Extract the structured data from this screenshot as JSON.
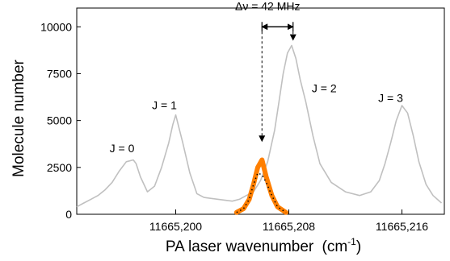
{
  "chart_data": {
    "type": "line",
    "title": "",
    "xlabel": "PA laser wavenumber",
    "xlabel_unit_base": "(cm",
    "xlabel_unit_sup": "-1",
    "xlabel_unit_close": ")",
    "ylabel": "Molecule number",
    "xlim": [
      11665.193,
      11665.219
    ],
    "ylim": [
      0,
      11000
    ],
    "x_ticks": [
      11665.2,
      11665.208,
      11665.216
    ],
    "x_tick_labels": [
      "11665,200",
      "11665,208",
      "11665,216"
    ],
    "y_ticks": [
      0,
      2500,
      5000,
      7500,
      10000
    ],
    "y_tick_labels": [
      "0",
      "2500",
      "5000",
      "7500",
      "10000"
    ],
    "grid": false,
    "legend": "none",
    "series": [
      {
        "color": "#c0c0c0",
        "x": [
          11665.193,
          11665.1935,
          11665.194,
          11665.1945,
          11665.195,
          11665.1955,
          11665.196,
          11665.1965,
          11665.197,
          11665.1972,
          11665.1975,
          11665.198,
          11665.1985,
          11665.199,
          11665.1995,
          11665.1998,
          11665.2,
          11665.2005,
          11665.201,
          11665.2015,
          11665.202,
          11665.203,
          11665.204,
          11665.2045,
          11665.205,
          11665.2055,
          11665.206,
          11665.2065,
          11665.207,
          11665.2073,
          11665.2076,
          11665.2079,
          11665.2082,
          11665.2085,
          11665.2088,
          11665.2092,
          11665.2097,
          11665.2102,
          11665.211,
          11665.212,
          11665.213,
          11665.2138,
          11665.2144,
          11665.2148,
          11665.2152,
          11665.2156,
          11665.216,
          11665.2164,
          11665.2168,
          11665.2172,
          11665.2177,
          11665.2182,
          11665.2188
        ],
        "y": [
          400,
          600,
          800,
          1000,
          1300,
          1700,
          2300,
          2800,
          2900,
          2700,
          2000,
          1200,
          1500,
          2500,
          3800,
          4800,
          5300,
          3800,
          2200,
          1100,
          900,
          800,
          700,
          800,
          1000,
          1200,
          1800,
          2800,
          4500,
          6000,
          7500,
          8600,
          9000,
          8300,
          7200,
          6000,
          4200,
          2700,
          1700,
          1200,
          1000,
          1200,
          1800,
          2700,
          3800,
          5000,
          5800,
          5400,
          4200,
          2800,
          1600,
          1000,
          600
        ]
      },
      {
        "color": "#ff7f00",
        "x": [
          11665.2043,
          11665.2048,
          11665.2052,
          11665.2055,
          11665.2058,
          11665.2061,
          11665.2064,
          11665.2068,
          11665.2072,
          11665.2078
        ],
        "y": [
          100,
          300,
          800,
          1600,
          2500,
          2900,
          2000,
          1000,
          400,
          100
        ]
      },
      {
        "color": "#000000",
        "style": "dotted",
        "x": [
          11665.2043,
          11665.2048,
          11665.2052,
          11665.2055,
          11665.2058,
          11665.2061,
          11665.2064,
          11665.2068,
          11665.2072,
          11665.2078
        ],
        "y": [
          100,
          300,
          800,
          1600,
          2200,
          2100,
          1700,
          1000,
          400,
          100
        ]
      }
    ],
    "annotations": [
      {
        "text": "J = 0",
        "x": 11665.1962,
        "y": 3300
      },
      {
        "text": "J = 1",
        "x": 11665.1992,
        "y": 5600
      },
      {
        "text": "J = 2",
        "x": 11665.2105,
        "y": 6500
      },
      {
        "text": "J = 3",
        "x": 11665.2152,
        "y": 6000
      },
      {
        "text": "Δν = 42 MHz",
        "x": 11665.2065,
        "y": 10900
      }
    ],
    "markers": [
      {
        "x_left": 11665.2061,
        "x_right": 11665.2083,
        "y_bar": 10000,
        "y_left_end": 3900,
        "y_right_end": 9300
      }
    ]
  }
}
